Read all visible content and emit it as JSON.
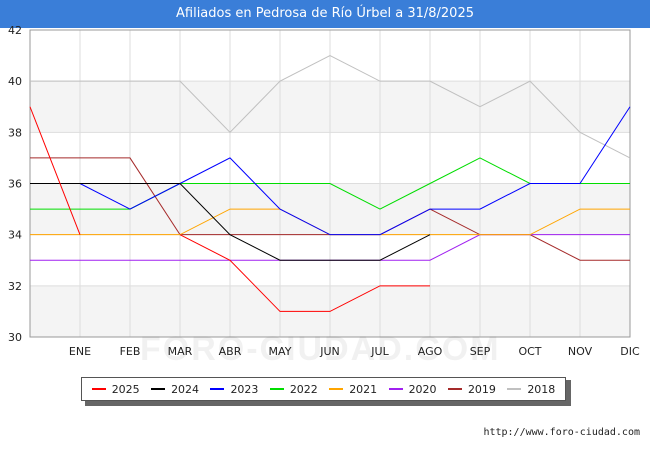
{
  "title": "Afiliados en Pedrosa de Río Úrbel a 31/8/2025",
  "source_url": "http://www.foro-ciudad.com",
  "watermark": "FORO-CIUDAD.COM",
  "chart_data": {
    "type": "line",
    "title": "Afiliados en Pedrosa de Río Úrbel a 31/8/2025",
    "xlabel": "",
    "ylabel": "",
    "categories": [
      "",
      "ENE",
      "FEB",
      "MAR",
      "ABR",
      "MAY",
      "JUN",
      "JUL",
      "AGO",
      "SEP",
      "OCT",
      "NOV",
      "DIC"
    ],
    "x_tick_labels": [
      "ENE",
      "FEB",
      "MAR",
      "ABR",
      "MAY",
      "JUN",
      "JUL",
      "AGO",
      "SEP",
      "OCT",
      "NOV",
      "DIC"
    ],
    "ylim": [
      30,
      42
    ],
    "y_ticks": [
      30,
      32,
      34,
      36,
      38,
      40,
      42
    ],
    "grid": true,
    "legend_position": "bottom",
    "series": [
      {
        "name": "2025",
        "color": "#ff0000",
        "values": [
          39,
          34,
          null,
          34,
          33,
          31,
          31,
          32,
          32,
          null,
          null,
          null,
          null
        ]
      },
      {
        "name": "2024",
        "color": "#000000",
        "values": [
          36,
          36,
          36,
          36,
          34,
          33,
          33,
          33,
          34,
          null,
          null,
          null,
          null
        ]
      },
      {
        "name": "2023",
        "color": "#0000ff",
        "values": [
          36,
          36,
          35,
          36,
          37,
          35,
          34,
          34,
          35,
          35,
          36,
          36,
          39
        ]
      },
      {
        "name": "2022",
        "color": "#00dd00",
        "values": [
          35,
          35,
          35,
          36,
          36,
          36,
          36,
          35,
          36,
          37,
          36,
          36,
          36
        ]
      },
      {
        "name": "2021",
        "color": "#ffa500",
        "values": [
          34,
          34,
          34,
          34,
          35,
          35,
          34,
          34,
          34,
          34,
          34,
          35,
          35
        ]
      },
      {
        "name": "2020",
        "color": "#a020f0",
        "values": [
          33,
          33,
          33,
          33,
          33,
          33,
          33,
          33,
          33,
          34,
          34,
          34,
          34
        ]
      },
      {
        "name": "2019",
        "color": "#a52a2a",
        "values": [
          37,
          37,
          37,
          34,
          34,
          34,
          34,
          34,
          35,
          34,
          34,
          33,
          33
        ]
      },
      {
        "name": "2018",
        "color": "#c0c0c0",
        "values": [
          40,
          40,
          40,
          40,
          38,
          40,
          41,
          40,
          40,
          39,
          40,
          38,
          37
        ]
      }
    ]
  }
}
